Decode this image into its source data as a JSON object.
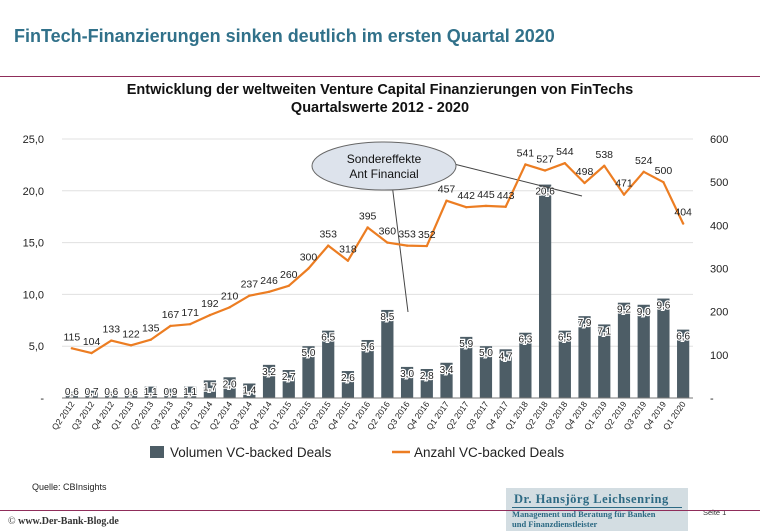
{
  "header": {
    "title": "FinTech-Finanzierungen sinken deutlich im ersten Quartal 2020"
  },
  "chart_data": {
    "type": "bar",
    "title": "Entwicklung der weltweiten Venture Capital Finanzierungen von FinTechs",
    "subtitle": "Quartalswerte 2012 - 2020",
    "categories": [
      "Q2 2012",
      "Q3 2012",
      "Q4 2012",
      "Q1 2013",
      "Q2 2013",
      "Q3 2013",
      "Q4 2013",
      "Q1 2014",
      "Q2 2014",
      "Q3 2014",
      "Q4 2014",
      "Q1 2015",
      "Q2 2015",
      "Q3 2015",
      "Q4 2015",
      "Q1 2016",
      "Q2 2016",
      "Q3 2016",
      "Q4 2016",
      "Q1 2017",
      "Q2 2017",
      "Q3 2017",
      "Q4 2017",
      "Q1 2018",
      "Q2 2018",
      "Q3 2018",
      "Q4 2018",
      "Q1 2019",
      "Q2 2019",
      "Q3 2019",
      "Q4 2019",
      "Q1 2020"
    ],
    "series": [
      {
        "name": "Volumen VC-backed Deals",
        "type": "bar",
        "axis": "left",
        "values": [
          0.6,
          0.7,
          0.6,
          0.6,
          1.1,
          0.9,
          1.1,
          1.7,
          2.0,
          1.4,
          3.2,
          2.7,
          5.0,
          6.5,
          2.6,
          5.6,
          8.5,
          3.0,
          2.8,
          3.4,
          5.9,
          5.0,
          4.7,
          6.3,
          20.6,
          6.5,
          7.9,
          7.1,
          9.2,
          9.0,
          9.6,
          6.6
        ],
        "labels": [
          "0,6",
          "0,7",
          "0,6",
          "0,6",
          "1,1",
          "0,9",
          "1,1",
          "1,7",
          "2,0",
          "1,4",
          "3,2",
          "2,7",
          "5,0",
          "6,5",
          "2,6",
          "5,6",
          "8,5",
          "3,0",
          "2,8",
          "3,4",
          "5,9",
          "5,0",
          "4,7",
          "6,3",
          "20,6",
          "6,5",
          "7,9",
          "7,1",
          "9,2",
          "9,0",
          "9,6",
          "6,6"
        ],
        "color": "#4d5d66"
      },
      {
        "name": "Anzahl VC-backed Deals",
        "type": "line",
        "axis": "right",
        "values": [
          115,
          104,
          133,
          122,
          135,
          167,
          171,
          192,
          210,
          237,
          246,
          260,
          300,
          353,
          318,
          395,
          360,
          353,
          352,
          457,
          442,
          445,
          443,
          541,
          527,
          544,
          498,
          538,
          471,
          524,
          500,
          404
        ],
        "color": "#ec7d22"
      }
    ],
    "y_left": {
      "ticks": [
        "-",
        "5,0",
        "10,0",
        "15,0",
        "20,0",
        "25,0"
      ],
      "ylim": [
        0,
        25
      ]
    },
    "y_right": {
      "ticks": [
        "-",
        "100",
        "200",
        "300",
        "400",
        "500",
        "600"
      ],
      "ylim": [
        0,
        600
      ]
    },
    "legend": "bottom",
    "annotation": {
      "line1": "Sondereffekte",
      "line2": "Ant Financial"
    }
  },
  "footer": {
    "source": "Quelle:  CBInsights",
    "copyright": "©",
    "website": "www.Der-Bank-Blog.de",
    "author_name": "Dr. Hansjörg Leichsenring",
    "author_line1": "Management und Beratung für Banken",
    "author_line2": "und Finanzdienstleister",
    "page": "Seite 1"
  },
  "colors": {
    "headline": "#31718a",
    "accent_rule": "#8f2d5a",
    "bar": "#4d5d66",
    "line": "#ec7d22"
  }
}
